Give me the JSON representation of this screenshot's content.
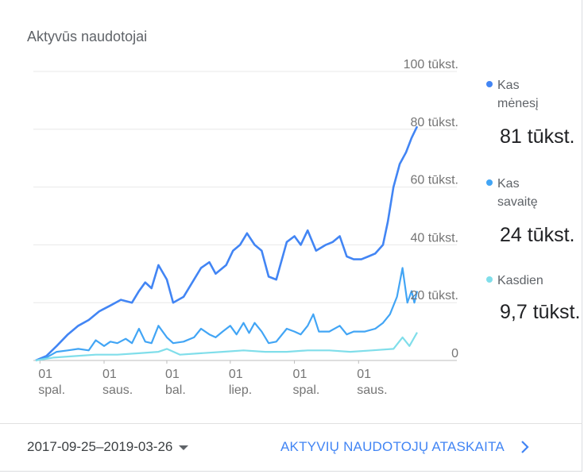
{
  "card": {
    "title": "Aktyvūs naudotojai"
  },
  "legend": [
    {
      "label": "Kas mėnesį",
      "value": "81 tūkst.",
      "color": "#4285f4"
    },
    {
      "label": "Kas savaitę",
      "value": "24 tūkst.",
      "color": "#42a5f5"
    },
    {
      "label": "Kasdien",
      "value": "9,7 tūkst.",
      "color": "#80deea"
    }
  ],
  "footer": {
    "date_range": "2017-09-25–2019-03-26",
    "report_link": "AKTYVIŲ NAUDOTOJŲ ATASKAITA"
  },
  "chart_data": {
    "type": "line",
    "x_range": [
      "2017-09-25",
      "2019-03-26"
    ],
    "ylim": [
      0,
      100000
    ],
    "y_tick_labels": [
      "0",
      "20 tūkst.",
      "40 tūkst.",
      "60 tūkst.",
      "80 tūkst.",
      "100 tūkst."
    ],
    "y_tick_values": [
      0,
      20000,
      40000,
      60000,
      80000,
      100000
    ],
    "x_ticks": [
      {
        "date": "2017-10-01",
        "day": "01",
        "month": "spal."
      },
      {
        "date": "2018-01-01",
        "day": "01",
        "month": "saus."
      },
      {
        "date": "2018-04-01",
        "day": "01",
        "month": "bal."
      },
      {
        "date": "2018-07-01",
        "day": "01",
        "month": "liep."
      },
      {
        "date": "2018-10-01",
        "day": "01",
        "month": "spal."
      },
      {
        "date": "2019-01-01",
        "day": "01",
        "month": "saus."
      }
    ],
    "grid": true,
    "series": [
      {
        "name": "Kas mėnesį",
        "color": "#4285f4",
        "points": [
          [
            "2017-09-25",
            0
          ],
          [
            "2017-10-10",
            1500
          ],
          [
            "2017-10-25",
            5000
          ],
          [
            "2017-11-10",
            9000
          ],
          [
            "2017-11-25",
            12000
          ],
          [
            "2017-12-10",
            14000
          ],
          [
            "2017-12-25",
            17000
          ],
          [
            "2018-01-10",
            19000
          ],
          [
            "2018-01-25",
            21000
          ],
          [
            "2018-02-10",
            20000
          ],
          [
            "2018-02-20",
            24000
          ],
          [
            "2018-03-01",
            27000
          ],
          [
            "2018-03-10",
            25000
          ],
          [
            "2018-03-20",
            33000
          ],
          [
            "2018-04-01",
            28000
          ],
          [
            "2018-04-10",
            20000
          ],
          [
            "2018-04-25",
            22000
          ],
          [
            "2018-05-10",
            28000
          ],
          [
            "2018-05-20",
            32000
          ],
          [
            "2018-06-01",
            34000
          ],
          [
            "2018-06-10",
            30000
          ],
          [
            "2018-06-25",
            33000
          ],
          [
            "2018-07-05",
            38000
          ],
          [
            "2018-07-15",
            40000
          ],
          [
            "2018-07-25",
            44000
          ],
          [
            "2018-08-05",
            40000
          ],
          [
            "2018-08-15",
            38000
          ],
          [
            "2018-08-25",
            29000
          ],
          [
            "2018-09-05",
            28000
          ],
          [
            "2018-09-20",
            41000
          ],
          [
            "2018-10-01",
            43000
          ],
          [
            "2018-10-10",
            40000
          ],
          [
            "2018-10-20",
            45000
          ],
          [
            "2018-11-01",
            38000
          ],
          [
            "2018-11-15",
            40000
          ],
          [
            "2018-11-25",
            41000
          ],
          [
            "2018-12-05",
            43000
          ],
          [
            "2018-12-15",
            36000
          ],
          [
            "2018-12-25",
            35000
          ],
          [
            "2019-01-05",
            35000
          ],
          [
            "2019-01-15",
            36000
          ],
          [
            "2019-01-25",
            37000
          ],
          [
            "2019-02-05",
            40000
          ],
          [
            "2019-02-12",
            48000
          ],
          [
            "2019-02-20",
            60000
          ],
          [
            "2019-03-01",
            68000
          ],
          [
            "2019-03-10",
            72000
          ],
          [
            "2019-03-18",
            77000
          ],
          [
            "2019-03-26",
            81000
          ]
        ]
      },
      {
        "name": "Kas savaitę",
        "color": "#42a5f5",
        "points": [
          [
            "2017-09-25",
            0
          ],
          [
            "2017-10-10",
            1000
          ],
          [
            "2017-10-25",
            3000
          ],
          [
            "2017-11-10",
            3500
          ],
          [
            "2017-11-25",
            4000
          ],
          [
            "2017-12-10",
            3500
          ],
          [
            "2017-12-20",
            7000
          ],
          [
            "2018-01-01",
            5000
          ],
          [
            "2018-01-10",
            6500
          ],
          [
            "2018-01-20",
            6000
          ],
          [
            "2018-02-01",
            7500
          ],
          [
            "2018-02-10",
            6000
          ],
          [
            "2018-02-20",
            11000
          ],
          [
            "2018-03-01",
            6500
          ],
          [
            "2018-03-10",
            6000
          ],
          [
            "2018-03-20",
            12000
          ],
          [
            "2018-04-01",
            8000
          ],
          [
            "2018-04-10",
            6000
          ],
          [
            "2018-04-25",
            6500
          ],
          [
            "2018-05-10",
            8000
          ],
          [
            "2018-05-20",
            11000
          ],
          [
            "2018-06-01",
            9000
          ],
          [
            "2018-06-10",
            8000
          ],
          [
            "2018-06-20",
            10000
          ],
          [
            "2018-07-01",
            12000
          ],
          [
            "2018-07-10",
            9000
          ],
          [
            "2018-07-20",
            13000
          ],
          [
            "2018-07-28",
            9500
          ],
          [
            "2018-08-05",
            13000
          ],
          [
            "2018-08-15",
            10000
          ],
          [
            "2018-08-25",
            6000
          ],
          [
            "2018-09-05",
            6500
          ],
          [
            "2018-09-20",
            11000
          ],
          [
            "2018-10-01",
            10000
          ],
          [
            "2018-10-10",
            9000
          ],
          [
            "2018-10-20",
            12000
          ],
          [
            "2018-10-28",
            16000
          ],
          [
            "2018-11-05",
            10000
          ],
          [
            "2018-11-20",
            10000
          ],
          [
            "2018-12-05",
            12000
          ],
          [
            "2018-12-15",
            9000
          ],
          [
            "2018-12-25",
            10000
          ],
          [
            "2019-01-10",
            10000
          ],
          [
            "2019-01-25",
            11000
          ],
          [
            "2019-02-05",
            13000
          ],
          [
            "2019-02-15",
            16000
          ],
          [
            "2019-02-25",
            22000
          ],
          [
            "2019-03-05",
            32000
          ],
          [
            "2019-03-12",
            20000
          ],
          [
            "2019-03-18",
            24000
          ],
          [
            "2019-03-22",
            20000
          ],
          [
            "2019-03-26",
            24000
          ]
        ]
      },
      {
        "name": "Kasdien",
        "color": "#80deea",
        "points": [
          [
            "2017-09-25",
            0
          ],
          [
            "2017-10-20",
            1000
          ],
          [
            "2017-11-20",
            1500
          ],
          [
            "2017-12-20",
            2000
          ],
          [
            "2018-01-20",
            2000
          ],
          [
            "2018-02-20",
            2500
          ],
          [
            "2018-03-20",
            3000
          ],
          [
            "2018-04-01",
            4000
          ],
          [
            "2018-04-20",
            2000
          ],
          [
            "2018-05-20",
            2500
          ],
          [
            "2018-06-20",
            3000
          ],
          [
            "2018-07-20",
            3500
          ],
          [
            "2018-08-20",
            3000
          ],
          [
            "2018-09-20",
            3000
          ],
          [
            "2018-10-20",
            3500
          ],
          [
            "2018-11-20",
            3500
          ],
          [
            "2018-12-20",
            3000
          ],
          [
            "2019-01-20",
            3500
          ],
          [
            "2019-02-20",
            4000
          ],
          [
            "2019-03-05",
            8000
          ],
          [
            "2019-03-15",
            5000
          ],
          [
            "2019-03-26",
            9700
          ]
        ]
      }
    ]
  }
}
